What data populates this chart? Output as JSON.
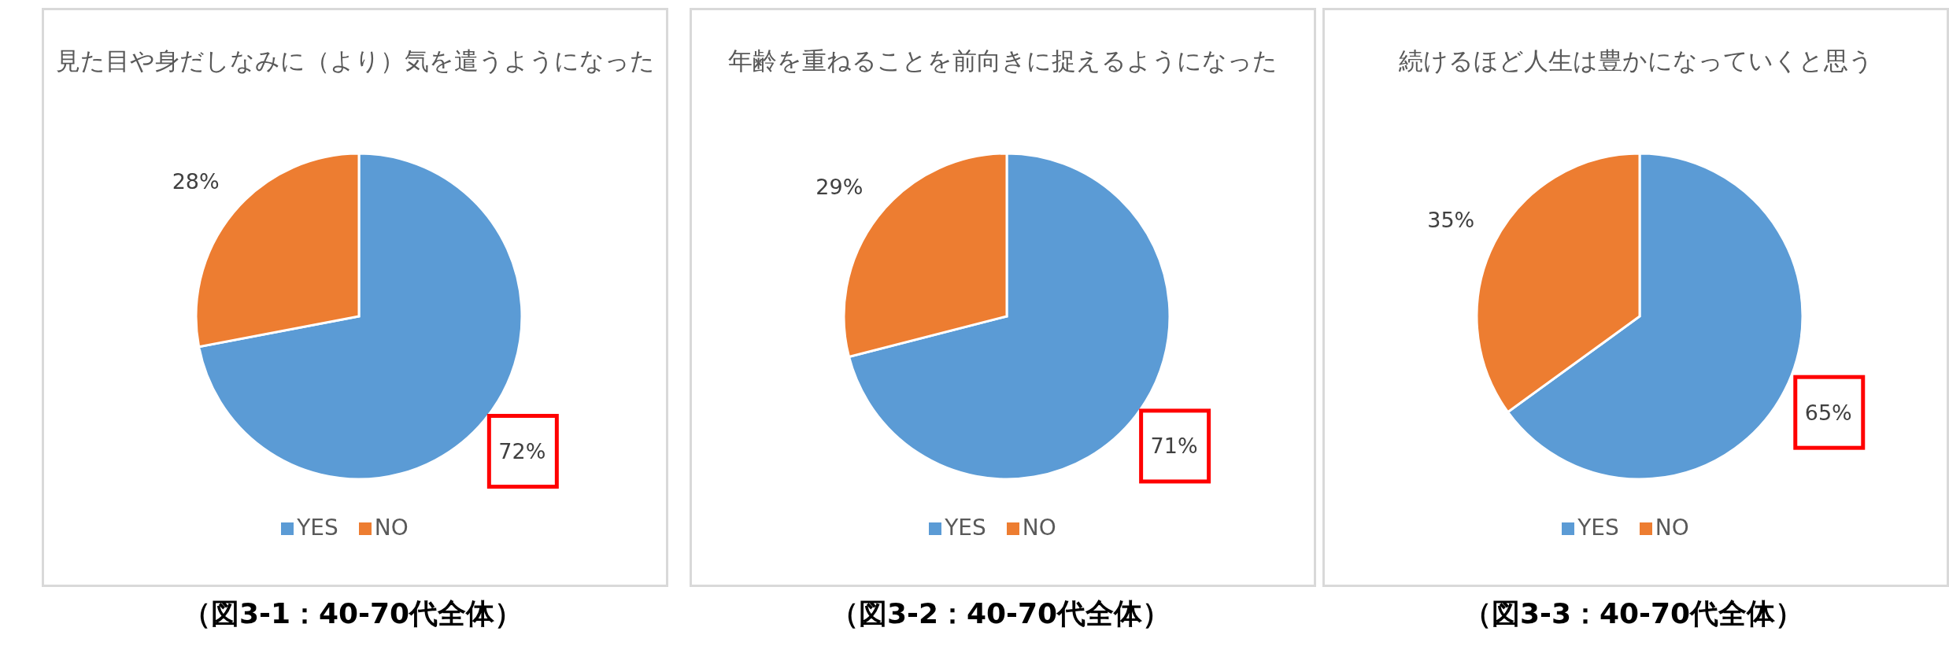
{
  "chart_data": [
    {
      "type": "pie",
      "title": "見た目や身だしなみに（より）気を遣うようになった",
      "categories": [
        "YES",
        "NO"
      ],
      "values": [
        72,
        28
      ],
      "colors": [
        "#5b9bd5",
        "#ed7d31"
      ],
      "value_labels": [
        "72%",
        "28%"
      ],
      "legend": "bottom",
      "annotations": [
        "（図3-1：40-70代全体）"
      ]
    },
    {
      "type": "pie",
      "title": "年齢を重ねることを前向きに捉えるようになった",
      "categories": [
        "YES",
        "NO"
      ],
      "values": [
        71,
        29
      ],
      "colors": [
        "#5b9bd5",
        "#ed7d31"
      ],
      "value_labels": [
        "71%",
        "29%"
      ],
      "legend": "bottom",
      "annotations": [
        "（図3-2：40-70代全体）"
      ]
    },
    {
      "type": "pie",
      "title": "続けるほど人生は豊かになっていくと思う",
      "categories": [
        "YES",
        "NO"
      ],
      "values": [
        65,
        35
      ],
      "colors": [
        "#5b9bd5",
        "#ed7d31"
      ],
      "value_labels": [
        "65%",
        "35%"
      ],
      "legend": "bottom",
      "annotations": [
        "（図3-3：40-70代全体）"
      ]
    }
  ]
}
